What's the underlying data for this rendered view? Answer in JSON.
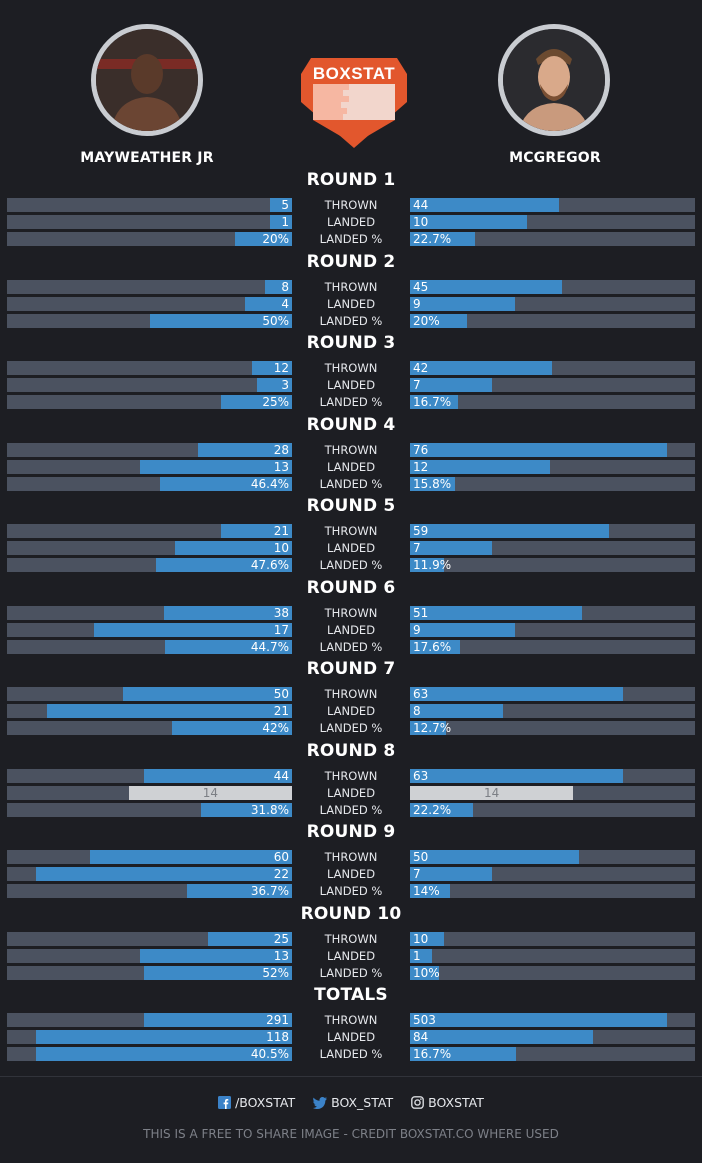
{
  "header": {
    "left_fighter": "MAYWEATHER JR",
    "right_fighter": "MCGREGOR",
    "logo_text": "BOXSTAT"
  },
  "stat_labels": [
    "THROWN",
    "LANDED",
    "LANDED %"
  ],
  "colors": {
    "background": "#1d1e23",
    "bar_track": "#4b5260",
    "bar_fill": "#3d8ac7",
    "tie_fill": "#cfd1d4",
    "logo": "#e2572d"
  },
  "chart_data": {
    "type": "bar",
    "orientation": "horizontal-mirrored",
    "series_names": [
      "MAYWEATHER JR",
      "MCGREGOR"
    ],
    "metrics": [
      "THROWN",
      "LANDED",
      "LANDED %"
    ],
    "groups": [
      {
        "title": "ROUND 1",
        "rows": [
          {
            "left": "5",
            "right": "44",
            "left_value": 5,
            "right_value": 44
          },
          {
            "left": "1",
            "right": "10",
            "left_value": 1,
            "right_value": 10
          },
          {
            "left": "20%",
            "right": "22.7%",
            "left_value": 20,
            "right_value": 22.7
          }
        ]
      },
      {
        "title": "ROUND 2",
        "rows": [
          {
            "left": "8",
            "right": "45",
            "left_value": 8,
            "right_value": 45
          },
          {
            "left": "4",
            "right": "9",
            "left_value": 4,
            "right_value": 9
          },
          {
            "left": "50%",
            "right": "20%",
            "left_value": 50,
            "right_value": 20
          }
        ]
      },
      {
        "title": "ROUND 3",
        "rows": [
          {
            "left": "12",
            "right": "42",
            "left_value": 12,
            "right_value": 42
          },
          {
            "left": "3",
            "right": "7",
            "left_value": 3,
            "right_value": 7
          },
          {
            "left": "25%",
            "right": "16.7%",
            "left_value": 25,
            "right_value": 16.7
          }
        ]
      },
      {
        "title": "ROUND 4",
        "rows": [
          {
            "left": "28",
            "right": "76",
            "left_value": 28,
            "right_value": 76
          },
          {
            "left": "13",
            "right": "12",
            "left_value": 13,
            "right_value": 12
          },
          {
            "left": "46.4%",
            "right": "15.8%",
            "left_value": 46.4,
            "right_value": 15.8
          }
        ]
      },
      {
        "title": "ROUND 5",
        "rows": [
          {
            "left": "21",
            "right": "59",
            "left_value": 21,
            "right_value": 59
          },
          {
            "left": "10",
            "right": "7",
            "left_value": 10,
            "right_value": 7
          },
          {
            "left": "47.6%",
            "right": "11.9%",
            "left_value": 47.6,
            "right_value": 11.9
          }
        ]
      },
      {
        "title": "ROUND 6",
        "rows": [
          {
            "left": "38",
            "right": "51",
            "left_value": 38,
            "right_value": 51
          },
          {
            "left": "17",
            "right": "9",
            "left_value": 17,
            "right_value": 9
          },
          {
            "left": "44.7%",
            "right": "17.6%",
            "left_value": 44.7,
            "right_value": 17.6
          }
        ]
      },
      {
        "title": "ROUND 7",
        "rows": [
          {
            "left": "50",
            "right": "63",
            "left_value": 50,
            "right_value": 63
          },
          {
            "left": "21",
            "right": "8",
            "left_value": 21,
            "right_value": 8
          },
          {
            "left": "42%",
            "right": "12.7%",
            "left_value": 42,
            "right_value": 12.7
          }
        ]
      },
      {
        "title": "ROUND 8",
        "rows": [
          {
            "left": "44",
            "right": "63",
            "left_value": 44,
            "right_value": 63
          },
          {
            "left": "14",
            "right": "14",
            "left_value": 14,
            "right_value": 14
          },
          {
            "left": "31.8%",
            "right": "22.2%",
            "left_value": 31.8,
            "right_value": 22.2
          }
        ]
      },
      {
        "title": "ROUND 9",
        "rows": [
          {
            "left": "60",
            "right": "50",
            "left_value": 60,
            "right_value": 50
          },
          {
            "left": "22",
            "right": "7",
            "left_value": 22,
            "right_value": 7
          },
          {
            "left": "36.7%",
            "right": "14%",
            "left_value": 36.7,
            "right_value": 14
          }
        ]
      },
      {
        "title": "ROUND 10",
        "rows": [
          {
            "left": "25",
            "right": "10",
            "left_value": 25,
            "right_value": 10
          },
          {
            "left": "13",
            "right": "1",
            "left_value": 13,
            "right_value": 1
          },
          {
            "left": "52%",
            "right": "10%",
            "left_value": 52,
            "right_value": 10
          }
        ]
      },
      {
        "title": "TOTALS",
        "rows": [
          {
            "left": "291",
            "right": "503",
            "left_value": 291,
            "right_value": 503
          },
          {
            "left": "118",
            "right": "84",
            "left_value": 118,
            "right_value": 84
          },
          {
            "left": "40.5%",
            "right": "16.7%",
            "left_value": 40.5,
            "right_value": 16.7
          }
        ]
      }
    ]
  },
  "footer": {
    "social": [
      {
        "icon": "facebook-icon",
        "label": "/BOXSTAT"
      },
      {
        "icon": "twitter-icon",
        "label": "BOX_STAT"
      },
      {
        "icon": "instagram-icon",
        "label": "BOXSTAT"
      }
    ],
    "credit": "THIS IS A FREE TO SHARE IMAGE - CREDIT BOXSTAT.CO WHERE USED"
  }
}
